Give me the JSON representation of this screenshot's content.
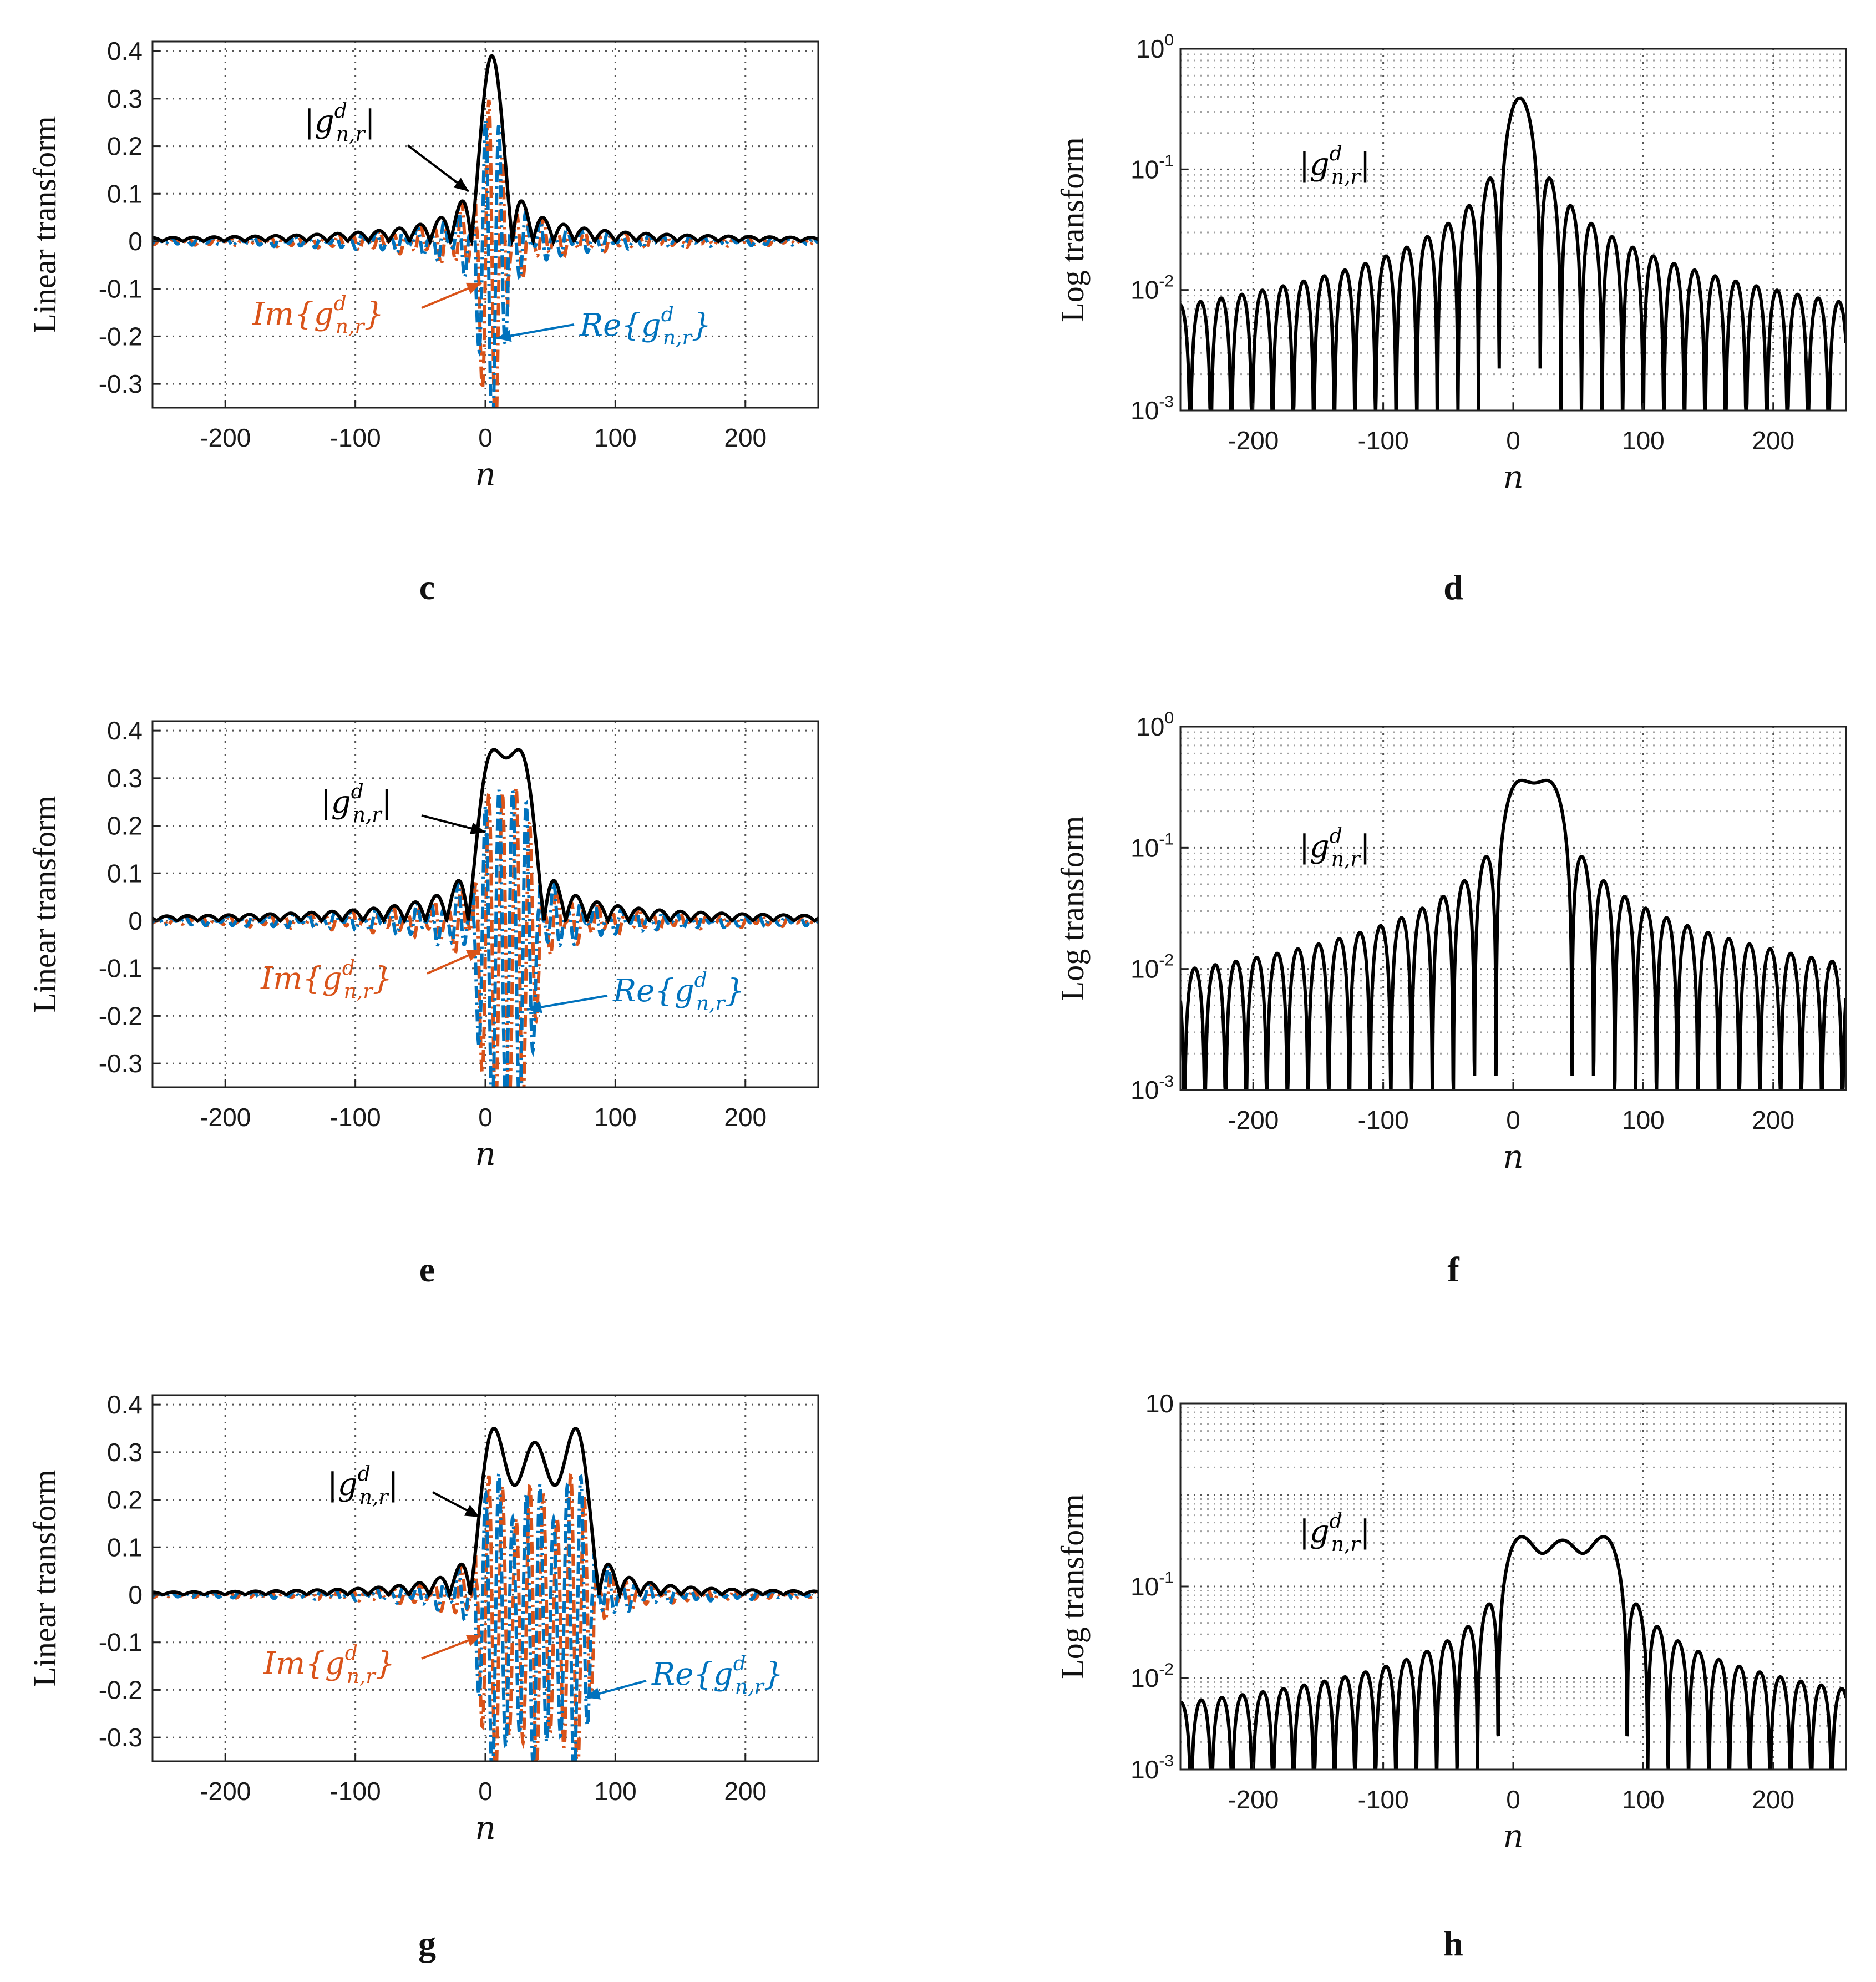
{
  "figure": {
    "colors": {
      "abs": "#000000",
      "real": "#0072BD",
      "imag": "#D95319",
      "grid": "#555555"
    },
    "panels": [
      {
        "id": "c",
        "label": "c",
        "scale": "linear",
        "ylabel": "Linear transform",
        "xlabel": "n",
        "xticks": [
          "-200",
          "-100",
          "0",
          "100",
          "200"
        ],
        "yticks": [
          "0.4",
          "0.3",
          "0.2",
          "0.1",
          "0",
          "-0.1",
          "-0.2",
          "-0.3"
        ],
        "ann_abs": "|g",
        "ann_re": "Re{g",
        "ann_im": "Im{g",
        "ann_sup": "d",
        "ann_sub": "n,r"
      },
      {
        "id": "d",
        "label": "d",
        "scale": "log",
        "ylabel": "Log transform",
        "xlabel": "n",
        "xticks": [
          "-200",
          "-100",
          "0",
          "100",
          "200"
        ],
        "yticks": [
          "10",
          "10",
          "10",
          "10"
        ],
        "yexp": [
          "0",
          "-1",
          "-2",
          "-3"
        ],
        "ann_abs": "|g",
        "ann_sup": "d",
        "ann_sub": "n,r"
      },
      {
        "id": "e",
        "label": "e",
        "scale": "linear",
        "ylabel": "Linear transform",
        "xlabel": "n",
        "xticks": [
          "-200",
          "-100",
          "0",
          "100",
          "200"
        ],
        "yticks": [
          "0.4",
          "0.3",
          "0.2",
          "0.1",
          "0",
          "-0.1",
          "-0.2",
          "-0.3"
        ],
        "ann_abs": "|g",
        "ann_re": "Re{g",
        "ann_im": "Im{g",
        "ann_sup": "d",
        "ann_sub": "n,r"
      },
      {
        "id": "f",
        "label": "f",
        "scale": "log",
        "ylabel": "Log transform",
        "xlabel": "n",
        "xticks": [
          "-200",
          "-100",
          "0",
          "100",
          "200"
        ],
        "yticks": [
          "10",
          "10",
          "10",
          "10"
        ],
        "yexp": [
          "0",
          "-1",
          "-2",
          "-3"
        ],
        "ann_abs": "|g",
        "ann_sup": "d",
        "ann_sub": "n,r"
      },
      {
        "id": "g",
        "label": "g",
        "scale": "linear",
        "ylabel": "Linear transform",
        "xlabel": "n",
        "xticks": [
          "-200",
          "-100",
          "0",
          "100",
          "200"
        ],
        "yticks": [
          "0.4",
          "0.3",
          "0.2",
          "0.1",
          "0",
          "-0.1",
          "-0.2",
          "-0.3"
        ],
        "ann_abs": "|g",
        "ann_re": "Re{g",
        "ann_im": "Im{g",
        "ann_sup": "d",
        "ann_sub": "n,r"
      },
      {
        "id": "h",
        "label": "h",
        "scale": "log",
        "ylabel": "Log transform",
        "xlabel": "n",
        "xticks": [
          "-200",
          "-100",
          "0",
          "100",
          "200"
        ],
        "yticks": [
          "10",
          "10",
          "10",
          "10"
        ],
        "yexp": [
          "",
          "-1",
          "-2",
          "-3"
        ],
        "ann_abs": "|g",
        "ann_sup": "d",
        "ann_sub": "n,r"
      }
    ]
  },
  "chart_data": [
    {
      "panel": "c",
      "type": "line",
      "xlabel": "n",
      "ylabel": "Linear transform",
      "xlim": [
        -256,
        256
      ],
      "ylim": [
        -0.35,
        0.42
      ],
      "xticks": [
        -200,
        -100,
        0,
        100,
        200
      ],
      "yticks": [
        -0.3,
        -0.2,
        -0.1,
        0,
        0.1,
        0.2,
        0.3,
        0.4
      ],
      "grid": true,
      "pulse_width": 1,
      "peak": 0.39,
      "series": [
        {
          "name": "|g^d_{n,r}|"
        },
        {
          "name": "Re{g^d_{n,r}}"
        },
        {
          "name": "Im{g^d_{n,r}}"
        }
      ]
    },
    {
      "panel": "d",
      "type": "line",
      "xlabel": "n",
      "ylabel": "Log transform",
      "xlim": [
        -256,
        256
      ],
      "ylim": [
        0.001,
        1
      ],
      "yscale": "log",
      "xticks": [
        -200,
        -100,
        0,
        100,
        200
      ],
      "yticks": [
        0.001,
        0.01,
        0.1,
        1
      ],
      "grid": true,
      "pulse_width": 1,
      "peak": 0.39,
      "series": [
        {
          "name": "|g^d_{n,r}|"
        }
      ]
    },
    {
      "panel": "e",
      "type": "line",
      "xlabel": "n",
      "ylabel": "Linear transform",
      "xlim": [
        -256,
        256
      ],
      "ylim": [
        -0.35,
        0.42
      ],
      "xticks": [
        -200,
        -100,
        0,
        100,
        200
      ],
      "yticks": [
        -0.3,
        -0.2,
        -0.1,
        0,
        0.1,
        0.2,
        0.3,
        0.4
      ],
      "grid": true,
      "pulse_width": 2,
      "peak": 0.36,
      "series": [
        {
          "name": "|g^d_{n,r}|"
        },
        {
          "name": "Re{g^d_{n,r}}"
        },
        {
          "name": "Im{g^d_{n,r}}"
        }
      ]
    },
    {
      "panel": "f",
      "type": "line",
      "xlabel": "n",
      "ylabel": "Log transform",
      "xlim": [
        -256,
        256
      ],
      "ylim": [
        0.001,
        1
      ],
      "yscale": "log",
      "xticks": [
        -200,
        -100,
        0,
        100,
        200
      ],
      "yticks": [
        0.001,
        0.01,
        0.1,
        1
      ],
      "grid": true,
      "pulse_width": 2,
      "peak": 0.36,
      "series": [
        {
          "name": "|g^d_{n,r}|"
        }
      ]
    },
    {
      "panel": "g",
      "type": "line",
      "xlabel": "n",
      "ylabel": "Linear transform",
      "xlim": [
        -256,
        256
      ],
      "ylim": [
        -0.35,
        0.42
      ],
      "xticks": [
        -200,
        -100,
        0,
        100,
        200
      ],
      "yticks": [
        -0.3,
        -0.2,
        -0.1,
        0,
        0.1,
        0.2,
        0.3,
        0.4
      ],
      "grid": true,
      "pulse_width": 4,
      "peak": 0.35,
      "series": [
        {
          "name": "|g^d_{n,r}|"
        },
        {
          "name": "Re{g^d_{n,r}}"
        },
        {
          "name": "Im{g^d_{n,r}}"
        }
      ]
    },
    {
      "panel": "h",
      "type": "line",
      "xlabel": "n",
      "ylabel": "Log transform",
      "xlim": [
        -256,
        256
      ],
      "ylim": [
        0.001,
        10
      ],
      "yscale": "log",
      "xticks": [
        -200,
        -100,
        0,
        100,
        200
      ],
      "yticks": [
        0.001,
        0.01,
        0.1,
        10
      ],
      "grid": true,
      "pulse_width": 4,
      "peak": 0.35,
      "series": [
        {
          "name": "|g^d_{n,r}|"
        }
      ]
    }
  ]
}
